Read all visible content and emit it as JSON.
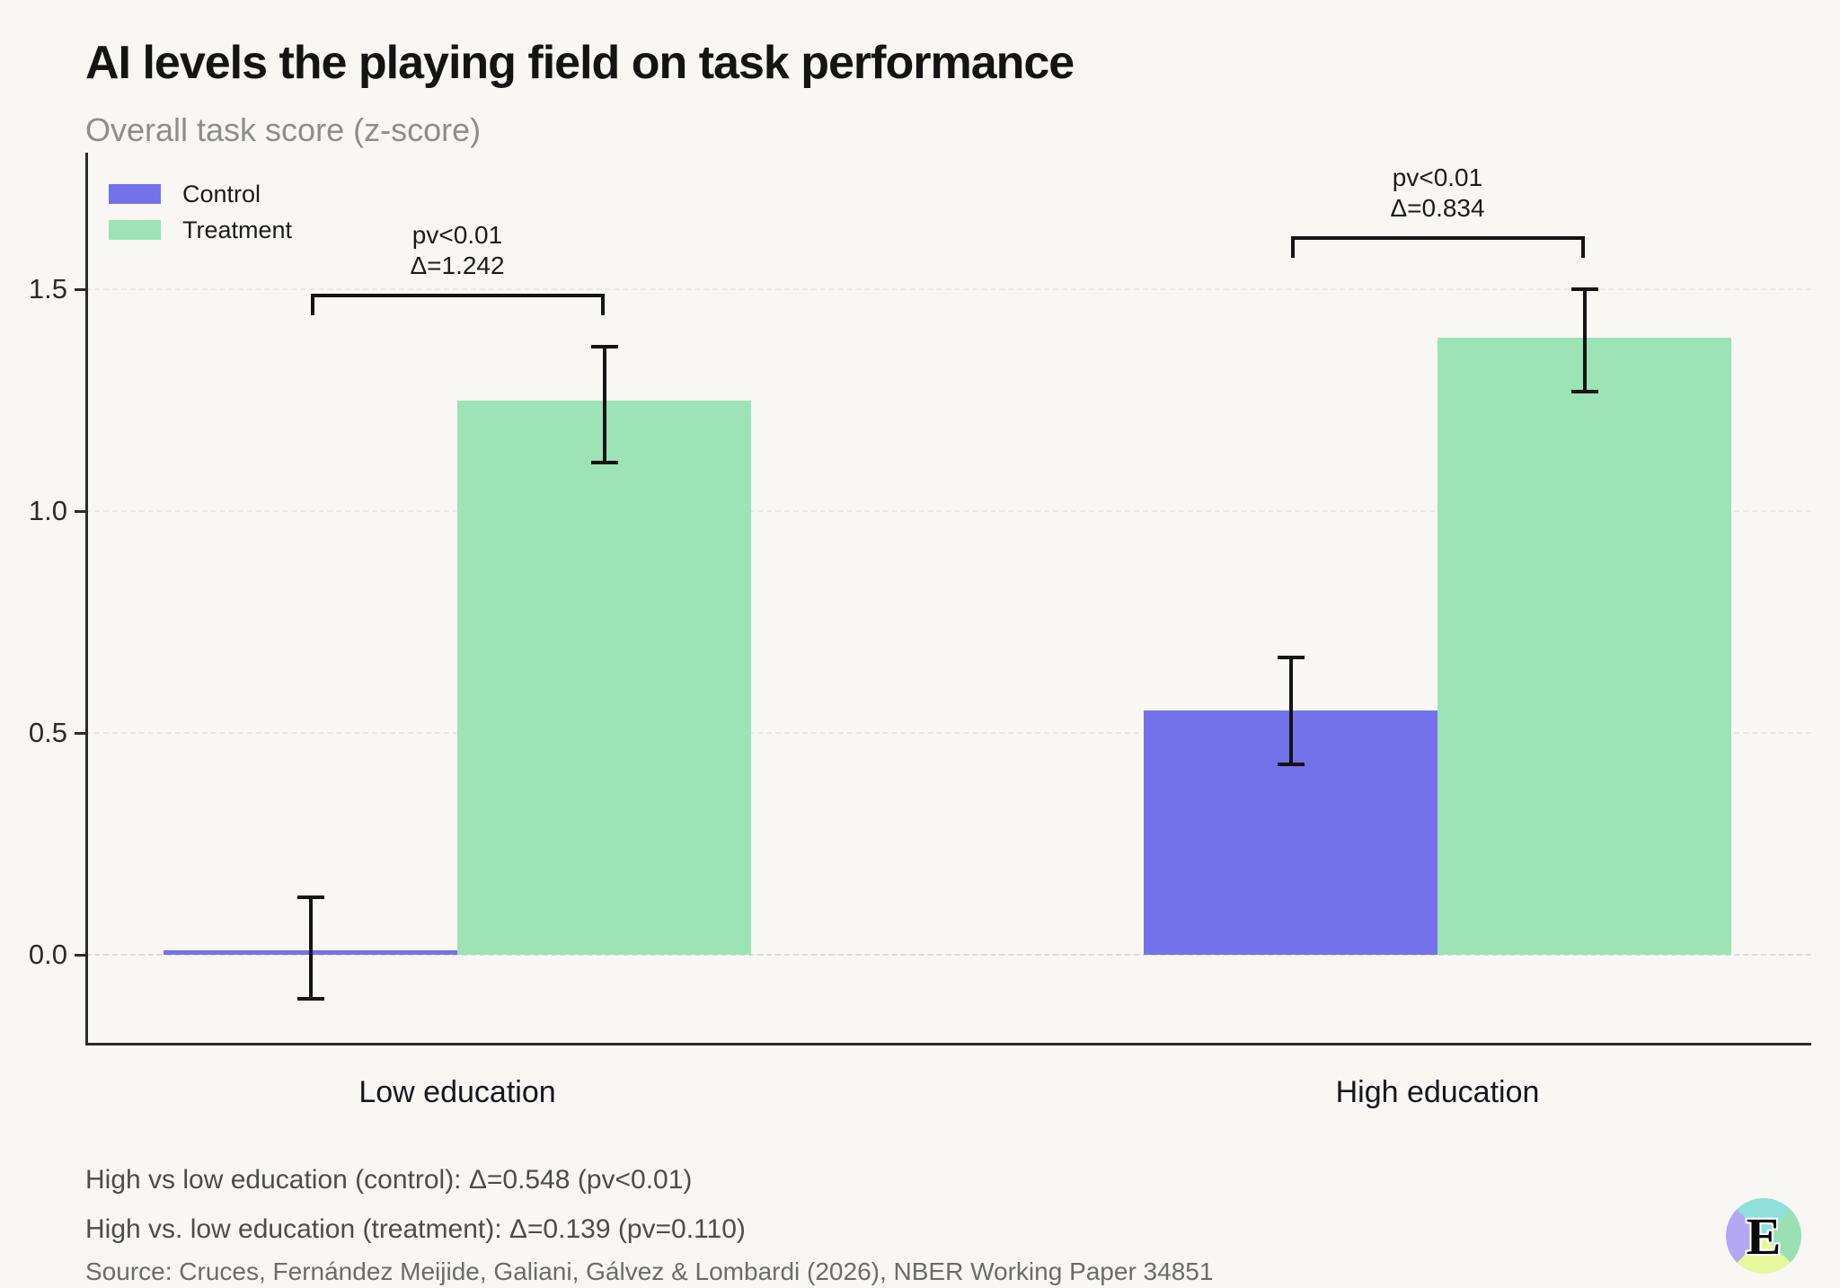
{
  "header": {
    "title": "AI levels the playing field on task performance",
    "subtitle": "Overall task score (z-score)"
  },
  "legend": [
    {
      "label": "Control",
      "color": "#7372ea"
    },
    {
      "label": "Treatment",
      "color": "#9ce3b6"
    }
  ],
  "chart_data": {
    "type": "bar",
    "categories": [
      "Low education",
      "High education"
    ],
    "series": [
      {
        "name": "Control",
        "color": "#7372ea",
        "values": [
          0.01,
          0.55
        ],
        "ci_low": [
          -0.1,
          0.43
        ],
        "ci_high": [
          0.13,
          0.67
        ]
      },
      {
        "name": "Treatment",
        "color": "#9ce3b6",
        "values": [
          1.25,
          1.39
        ],
        "ci_low": [
          1.11,
          1.27
        ],
        "ci_high": [
          1.37,
          1.5
        ]
      }
    ],
    "ylabel": "Overall task score (z-score)",
    "yticks": [
      0.0,
      0.5,
      1.0,
      1.5
    ],
    "ylim": [
      -0.2,
      1.8
    ],
    "grid": "horizontal-dashed",
    "legend_position": "top-left",
    "annotations": [
      {
        "category_index": 0,
        "lines": [
          "pv<0.01",
          "Δ=1.242"
        ],
        "bracket_y": 1.49
      },
      {
        "category_index": 1,
        "lines": [
          "pv<0.01",
          "Δ=0.834"
        ],
        "bracket_y": 1.62
      }
    ]
  },
  "footnotes": [
    "High vs low education (control): Δ=0.548 (pv<0.01)",
    "High vs. low education (treatment): Δ=0.139 (pv=0.110)"
  ],
  "source": "Source: Cruces, Fernández Meijide, Galiani, Gálvez & Lombardi (2026), NBER Working Paper 34851",
  "logo": {
    "letter": "E"
  },
  "colors": {
    "background": "#f8f7f4",
    "axis": "#2b2b2b",
    "grid": "#e8e7e4",
    "error_bar": "#141414",
    "title": "#141414",
    "subtitle": "#8d8d8d",
    "footnote": "#4c4c4c",
    "source": "#6b6b6b"
  }
}
